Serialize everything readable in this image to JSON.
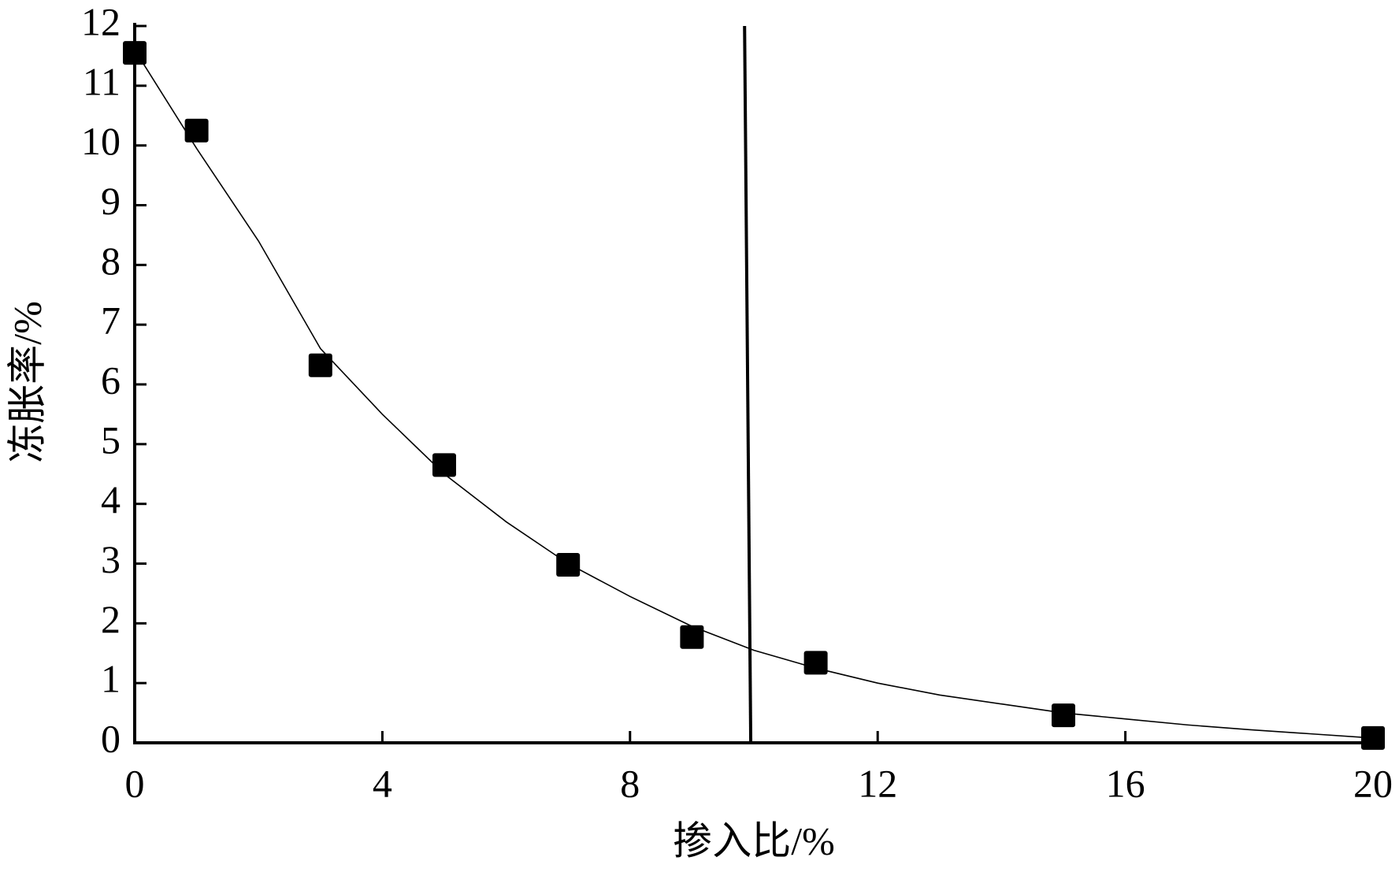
{
  "chart_data": {
    "type": "scatter",
    "x_label": "掺入比/%",
    "y_label": "冻胀率/%",
    "xlim": [
      0,
      20
    ],
    "xticks": [
      0,
      4,
      8,
      12,
      16,
      20
    ],
    "ylim": [
      0,
      12
    ],
    "yticks": [
      0,
      1,
      2,
      3,
      4,
      5,
      6,
      7,
      8,
      9,
      10,
      11,
      12
    ],
    "series": [
      {
        "mark": "square",
        "color": "#000000",
        "x": [
          0,
          1,
          3,
          5,
          7,
          9,
          11,
          15,
          20
        ],
        "values": [
          11.55,
          10.25,
          6.32,
          4.65,
          2.98,
          1.77,
          1.34,
          0.46,
          0.08
        ]
      },
      {
        "mark": "line",
        "color": "#000000",
        "x": [
          0,
          1,
          2,
          3,
          4,
          5,
          6,
          7,
          8,
          9,
          10,
          11,
          12,
          13,
          14,
          15,
          16,
          17,
          18,
          19,
          20
        ],
        "values": [
          11.6,
          9.95,
          8.4,
          6.6,
          5.5,
          4.5,
          3.7,
          3.0,
          2.45,
          1.95,
          1.55,
          1.25,
          1.0,
          0.8,
          0.65,
          0.5,
          0.4,
          0.3,
          0.22,
          0.15,
          0.08
        ]
      },
      {
        "mark": "thick-line",
        "color": "#000000",
        "x": [
          9.85,
          9.95
        ],
        "values": [
          12,
          0
        ]
      }
    ]
  }
}
